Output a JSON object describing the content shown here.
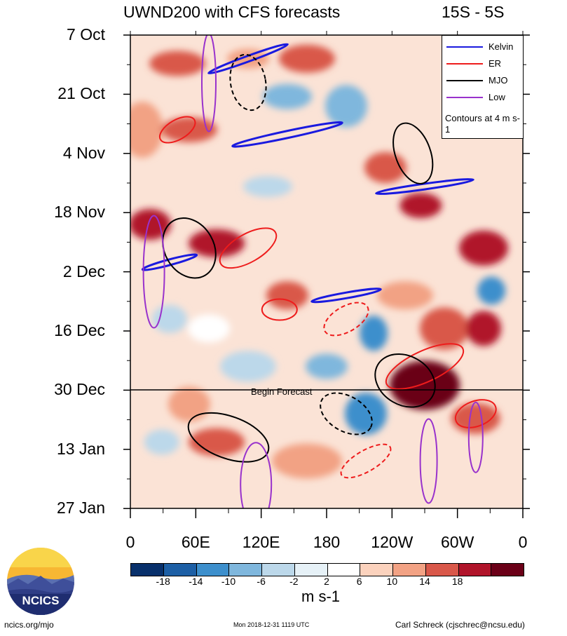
{
  "chart_data": {
    "type": "heatmap",
    "title": "UWND200 with CFS forecasts",
    "region": "15S - 5S",
    "y_ticks": [
      "7 Oct",
      "21 Oct",
      "4 Nov",
      "18 Nov",
      "2 Dec",
      "16 Dec",
      "30 Dec",
      "13 Jan",
      "27 Jan"
    ],
    "x_ticks": [
      "0",
      "60E",
      "120E",
      "180",
      "120W",
      "60W",
      "0"
    ],
    "forecast_label": "Begin Forecast",
    "legend": [
      {
        "name": "Kelvin",
        "color": "#1a1adf"
      },
      {
        "name": "ER",
        "color": "#ee1c1c"
      },
      {
        "name": "MJO",
        "color": "#000000"
      },
      {
        "name": "Low",
        "color": "#9932cc"
      }
    ],
    "legend_note": "Contours at 4 m s-1",
    "colorbar": {
      "labels": [
        "-18",
        "-14",
        "-10",
        "-6",
        "-2",
        "2",
        "6",
        "10",
        "14",
        "18"
      ],
      "colors": [
        "#08306b",
        "#1d5fa5",
        "#3d8fcc",
        "#7fb7dd",
        "#bcd8ea",
        "#e6f1f7",
        "#ffffff",
        "#fbd2bd",
        "#f2a284",
        "#d9584a",
        "#b0142a",
        "#6b0018"
      ],
      "units": "m s-1"
    }
  },
  "footer": {
    "site": "ncics.org/mjo",
    "timestamp": "Mon 2018-12-31 1119 UTC",
    "author": "Carl Schreck (cjschrec@ncsu.edu)",
    "logo_text": "NCICS"
  }
}
